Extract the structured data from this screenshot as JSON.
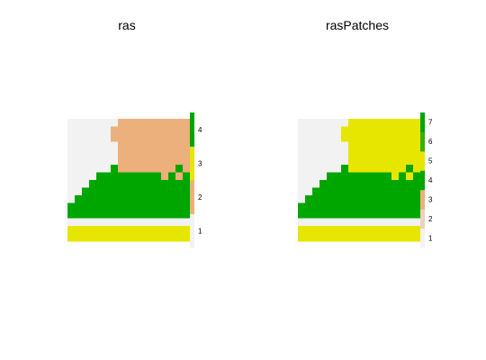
{
  "chart_data": [
    {
      "type": "heatmap",
      "title": "ras",
      "grid": [
        [
          1,
          1,
          1,
          1,
          1,
          1,
          1,
          2,
          2,
          2,
          2,
          2,
          2,
          2,
          2,
          2,
          2
        ],
        [
          1,
          1,
          1,
          1,
          1,
          1,
          2,
          2,
          2,
          2,
          2,
          2,
          2,
          2,
          2,
          2,
          2
        ],
        [
          1,
          1,
          1,
          1,
          1,
          1,
          2,
          2,
          2,
          2,
          2,
          2,
          2,
          2,
          2,
          2,
          2
        ],
        [
          1,
          1,
          1,
          1,
          1,
          1,
          1,
          2,
          2,
          2,
          2,
          2,
          2,
          2,
          2,
          2,
          2
        ],
        [
          1,
          1,
          1,
          1,
          1,
          1,
          1,
          2,
          2,
          2,
          2,
          2,
          2,
          2,
          2,
          2,
          2
        ],
        [
          1,
          1,
          1,
          1,
          1,
          1,
          1,
          2,
          2,
          2,
          2,
          2,
          2,
          2,
          2,
          2,
          2
        ],
        [
          1,
          1,
          1,
          1,
          1,
          1,
          4,
          2,
          2,
          2,
          2,
          2,
          2,
          2,
          2,
          4,
          2
        ],
        [
          1,
          1,
          1,
          1,
          4,
          4,
          4,
          4,
          4,
          4,
          4,
          4,
          4,
          2,
          4,
          2,
          4
        ],
        [
          1,
          1,
          1,
          4,
          4,
          4,
          4,
          4,
          4,
          4,
          4,
          4,
          4,
          4,
          4,
          4,
          4
        ],
        [
          1,
          1,
          4,
          4,
          4,
          4,
          4,
          4,
          4,
          4,
          4,
          4,
          4,
          4,
          4,
          4,
          4
        ],
        [
          1,
          4,
          4,
          4,
          4,
          4,
          4,
          4,
          4,
          4,
          4,
          4,
          4,
          4,
          4,
          4,
          4
        ],
        [
          4,
          4,
          4,
          4,
          4,
          4,
          4,
          4,
          4,
          4,
          4,
          4,
          4,
          4,
          4,
          4,
          4
        ],
        [
          4,
          4,
          4,
          4,
          4,
          4,
          4,
          4,
          4,
          4,
          4,
          4,
          4,
          4,
          4,
          4,
          4
        ],
        [
          1,
          1,
          1,
          1,
          1,
          1,
          1,
          1,
          1,
          1,
          1,
          1,
          1,
          1,
          1,
          1,
          1
        ],
        [
          3,
          3,
          3,
          3,
          3,
          3,
          3,
          3,
          3,
          3,
          3,
          3,
          3,
          3,
          3,
          3,
          3
        ],
        [
          3,
          3,
          3,
          3,
          3,
          3,
          3,
          3,
          3,
          3,
          3,
          3,
          3,
          3,
          3,
          3,
          3
        ]
      ],
      "legend": {
        "ticks": [
          "1",
          "2",
          "3",
          "4"
        ],
        "colors": [
          "#f2f2f2",
          "#ebb07c",
          "#e6e600",
          "#00a600"
        ]
      }
    },
    {
      "type": "heatmap",
      "title": "rasPatches",
      "grid": [
        [
          1,
          1,
          1,
          1,
          1,
          1,
          1,
          5,
          5,
          5,
          5,
          5,
          5,
          5,
          5,
          5,
          5
        ],
        [
          1,
          1,
          1,
          1,
          1,
          1,
          5,
          5,
          5,
          5,
          5,
          5,
          5,
          5,
          5,
          5,
          5
        ],
        [
          1,
          1,
          1,
          1,
          1,
          1,
          5,
          5,
          5,
          5,
          5,
          5,
          5,
          5,
          5,
          5,
          5
        ],
        [
          1,
          1,
          1,
          1,
          1,
          1,
          1,
          5,
          5,
          5,
          5,
          5,
          5,
          5,
          5,
          5,
          5
        ],
        [
          1,
          1,
          1,
          1,
          1,
          1,
          1,
          5,
          5,
          5,
          5,
          5,
          5,
          5,
          5,
          5,
          5
        ],
        [
          1,
          1,
          1,
          1,
          1,
          1,
          1,
          5,
          5,
          5,
          5,
          5,
          5,
          5,
          5,
          5,
          5
        ],
        [
          1,
          1,
          1,
          1,
          1,
          1,
          4,
          5,
          5,
          5,
          5,
          5,
          5,
          5,
          5,
          4,
          5
        ],
        [
          1,
          1,
          1,
          1,
          4,
          4,
          4,
          4,
          4,
          4,
          4,
          4,
          4,
          5,
          4,
          5,
          4
        ],
        [
          1,
          1,
          1,
          4,
          4,
          4,
          4,
          4,
          4,
          4,
          4,
          4,
          4,
          4,
          4,
          4,
          4
        ],
        [
          1,
          1,
          4,
          4,
          4,
          4,
          4,
          4,
          4,
          4,
          4,
          4,
          4,
          4,
          4,
          4,
          4
        ],
        [
          1,
          4,
          4,
          4,
          4,
          4,
          4,
          4,
          4,
          4,
          4,
          4,
          4,
          4,
          4,
          4,
          4
        ],
        [
          4,
          4,
          4,
          4,
          4,
          4,
          4,
          4,
          4,
          4,
          4,
          4,
          4,
          4,
          4,
          4,
          4
        ],
        [
          4,
          4,
          4,
          4,
          4,
          4,
          4,
          4,
          4,
          4,
          4,
          4,
          4,
          4,
          4,
          4,
          4
        ],
        [
          1,
          1,
          1,
          1,
          1,
          1,
          1,
          1,
          1,
          1,
          1,
          1,
          1,
          1,
          1,
          1,
          1
        ],
        [
          5,
          5,
          5,
          5,
          5,
          5,
          5,
          5,
          5,
          5,
          5,
          5,
          5,
          5,
          5,
          5,
          5
        ],
        [
          5,
          5,
          5,
          5,
          5,
          5,
          5,
          5,
          5,
          5,
          5,
          5,
          5,
          5,
          5,
          5,
          5
        ]
      ],
      "legend": {
        "ticks": [
          "1",
          "2",
          "3",
          "4",
          "5",
          "6",
          "7"
        ],
        "colors": [
          "#f2f2f2",
          "#eed1ba",
          "#ebb07c",
          "#00a600",
          "#e6e600",
          "#36b200",
          "#00a600"
        ]
      }
    }
  ]
}
